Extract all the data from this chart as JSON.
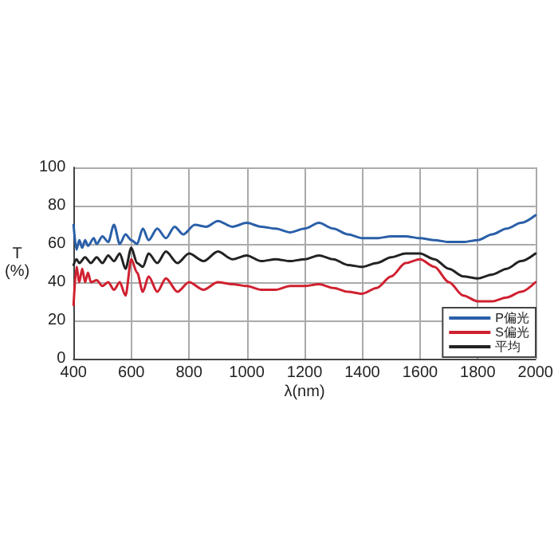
{
  "chart_data": {
    "type": "line",
    "xlabel": "λ(nm)",
    "ylabel": "T\n(%)",
    "xlim": [
      400,
      2000
    ],
    "xticks": [
      400,
      600,
      800,
      1000,
      1200,
      1400,
      1600,
      1800,
      2000
    ],
    "ylim": [
      0,
      100
    ],
    "yticks": [
      0,
      20,
      40,
      60,
      80,
      100
    ],
    "grid": true,
    "legend": "bottom right",
    "marker": "none",
    "line_style": "solid",
    "series": [
      {
        "name": "P偏光",
        "color": "#2a5fa8",
        "x": [
          400,
          410,
          420,
          430,
          440,
          450,
          470,
          480,
          500,
          520,
          540,
          560,
          580,
          600,
          620,
          640,
          660,
          690,
          720,
          750,
          780,
          820,
          860,
          900,
          950,
          1000,
          1050,
          1100,
          1150,
          1200,
          1250,
          1300,
          1350,
          1400,
          1450,
          1500,
          1550,
          1600,
          1650,
          1700,
          1750,
          1800,
          1850,
          1900,
          1950,
          2000
        ],
        "values": [
          70,
          57,
          62,
          58,
          62,
          59,
          63,
          60,
          64,
          61,
          70,
          60,
          65,
          62,
          60,
          68,
          62,
          68,
          63,
          69,
          65,
          70,
          69,
          72,
          69,
          71,
          69,
          68,
          66,
          68,
          71,
          68,
          65,
          63,
          63,
          64,
          64,
          63,
          62,
          61,
          61,
          62,
          65,
          68,
          71,
          75
        ]
      },
      {
        "name": "S偏光",
        "color": "#d02030",
        "x": [
          400,
          410,
          420,
          430,
          440,
          450,
          460,
          480,
          500,
          520,
          540,
          560,
          580,
          600,
          620,
          640,
          660,
          690,
          720,
          760,
          800,
          850,
          900,
          950,
          1000,
          1050,
          1100,
          1150,
          1200,
          1250,
          1300,
          1350,
          1400,
          1450,
          1500,
          1550,
          1600,
          1650,
          1700,
          1750,
          1800,
          1850,
          1900,
          1950,
          2000
        ],
        "values": [
          28,
          48,
          40,
          47,
          40,
          45,
          40,
          41,
          38,
          40,
          36,
          40,
          33,
          52,
          45,
          35,
          43,
          35,
          42,
          35,
          40,
          36,
          40,
          39,
          38,
          36,
          36,
          38,
          38,
          39,
          37,
          35,
          34,
          37,
          43,
          50,
          52,
          48,
          40,
          33,
          30,
          30,
          32,
          35,
          40
        ]
      },
      {
        "name": "平均",
        "color": "#222222",
        "x": [
          400,
          410,
          420,
          440,
          460,
          480,
          500,
          520,
          540,
          560,
          580,
          600,
          620,
          640,
          660,
          690,
          720,
          760,
          800,
          850,
          900,
          950,
          1000,
          1050,
          1100,
          1150,
          1200,
          1250,
          1300,
          1350,
          1400,
          1450,
          1500,
          1550,
          1600,
          1650,
          1700,
          1750,
          1800,
          1850,
          1900,
          1950,
          2000
        ],
        "values": [
          49,
          52,
          50,
          53,
          50,
          53,
          50,
          54,
          51,
          55,
          47,
          58,
          50,
          48,
          55,
          50,
          56,
          50,
          55,
          51,
          56,
          52,
          54,
          51,
          52,
          51,
          52,
          54,
          52,
          49,
          48,
          50,
          53,
          55,
          55,
          52,
          47,
          43,
          42,
          44,
          47,
          51,
          55
        ]
      }
    ]
  }
}
